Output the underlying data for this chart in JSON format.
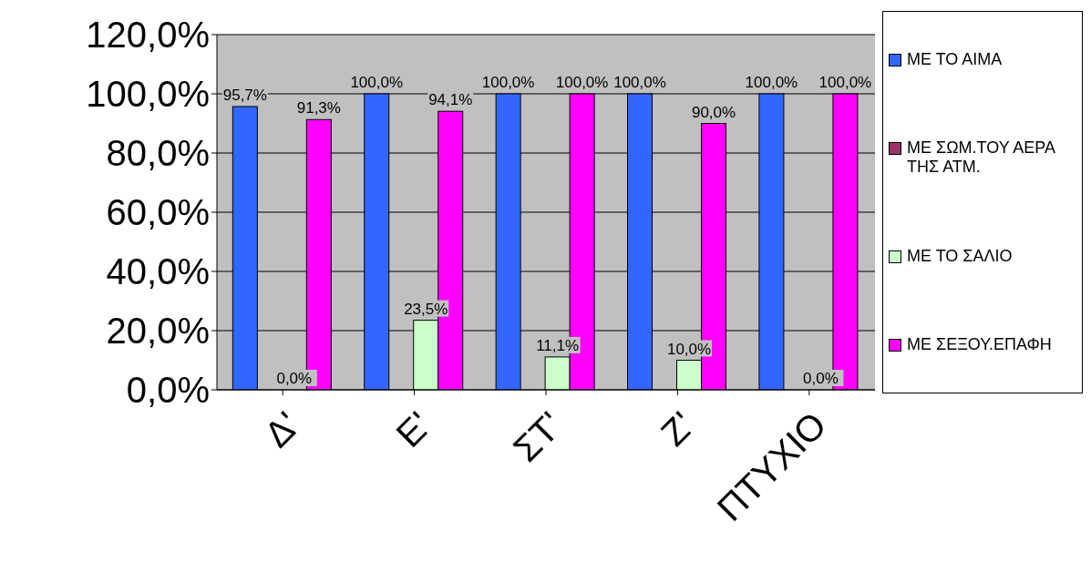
{
  "chart_data": {
    "type": "bar",
    "categories": [
      "Δ'",
      "Ε'",
      "ΣΤ'",
      "Ζ'",
      "ΠΤΥΧΙΟ"
    ],
    "series": [
      {
        "name": "ΜΕ ΤΟ ΑΙΜΑ",
        "color": "#3366ff",
        "values": [
          95.7,
          100,
          100,
          100,
          100
        ],
        "value_labels": [
          "95,7%",
          "100,0%",
          "100,0%",
          "100,0%",
          "100,0%"
        ]
      },
      {
        "name": "ΜΕ ΣΩΜ.ΤΟΥ ΑΕΡΑ ΤΗΣ ΑΤΜ.",
        "color": "#993366",
        "values": [
          null,
          null,
          null,
          null,
          null
        ]
      },
      {
        "name": "ΜΕ ΤΟ ΣΑΛΙΟ",
        "color": "#ccffcc",
        "values": [
          0,
          23.5,
          11.1,
          10.0,
          0
        ],
        "value_labels": [
          "0,0%",
          "23,5%",
          "11,1%",
          "10,0%",
          "0,0%"
        ]
      },
      {
        "name": "ΜΕ ΣΕΞΟΥ.ΕΠΑΦΗ",
        "color": "#ff00ff",
        "values": [
          91.3,
          94.1,
          100,
          90.0,
          100
        ],
        "value_labels": [
          "91,3%",
          "94,1%",
          "100,0%",
          "90,0%",
          "100,0%"
        ]
      }
    ],
    "ylim": [
      0,
      120
    ],
    "yticks": [
      {
        "value": 0,
        "label": "0,0%"
      },
      {
        "value": 20,
        "label": "20,0%"
      },
      {
        "value": 40,
        "label": "40,0%"
      },
      {
        "value": 60,
        "label": "60,0%"
      },
      {
        "value": 80,
        "label": "80,0%"
      },
      {
        "value": 100,
        "label": "100,0%"
      },
      {
        "value": 120,
        "label": "120,0%"
      }
    ],
    "grid": "y",
    "legend": "right"
  }
}
